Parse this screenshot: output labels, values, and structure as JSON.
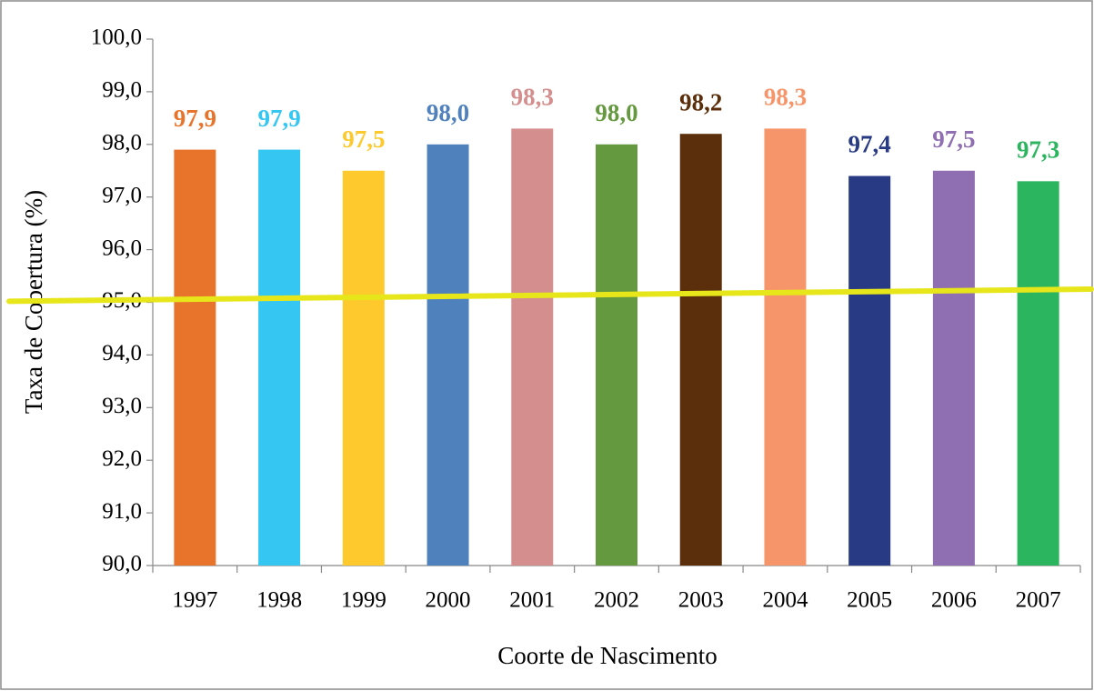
{
  "chart_data": {
    "type": "bar",
    "categories": [
      "1997",
      "1998",
      "1999",
      "2000",
      "2001",
      "2002",
      "2003",
      "2004",
      "2005",
      "2006",
      "2007"
    ],
    "values": [
      97.9,
      97.9,
      97.5,
      98.0,
      98.3,
      98.0,
      98.2,
      98.3,
      97.4,
      97.5,
      97.3
    ],
    "value_labels": [
      "97,9",
      "97,9",
      "97,5",
      "98,0",
      "98,3",
      "98,0",
      "98,2",
      "98,3",
      "97,4",
      "97,5",
      "97,3"
    ],
    "colors": [
      "#e8742c",
      "#35c6f2",
      "#fdc92c",
      "#4f81bd",
      "#d48e8e",
      "#64993f",
      "#5c2f0c",
      "#f7956a",
      "#283a84",
      "#8f6fb1",
      "#2bb55f"
    ],
    "ylim": [
      90,
      100
    ],
    "yticks": [
      {
        "value": 90,
        "label": "90,0"
      },
      {
        "value": 91,
        "label": "91,0"
      },
      {
        "value": 92,
        "label": "92,0"
      },
      {
        "value": 93,
        "label": "93,0"
      },
      {
        "value": 94,
        "label": "94,0"
      },
      {
        "value": 95,
        "label": "95,0"
      },
      {
        "value": 96,
        "label": "96,0"
      },
      {
        "value": 97,
        "label": "97,0"
      },
      {
        "value": 98,
        "label": "98,0"
      },
      {
        "value": 99,
        "label": "99,0"
      },
      {
        "value": 100,
        "label": "100,0"
      }
    ],
    "ylabel": "Taxa de Cobertura (%)",
    "xlabel": "Coorte de Nascimento",
    "target_line": {
      "start": 95.02,
      "end": 95.25,
      "color": "#e6e61a"
    }
  }
}
